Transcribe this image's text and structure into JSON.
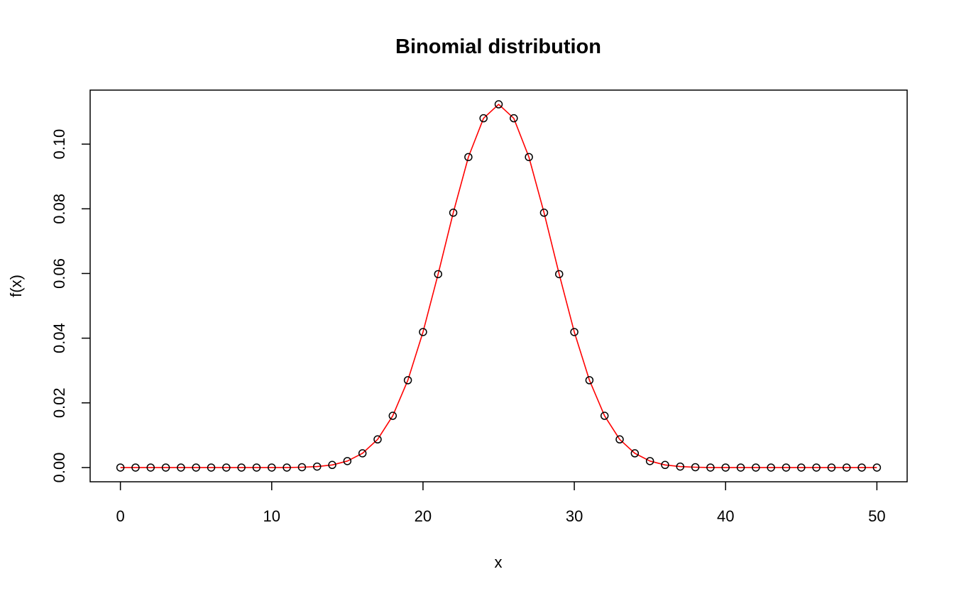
{
  "chart_data": {
    "type": "scatter",
    "title": "Binomial distribution",
    "xlabel": "x",
    "ylabel": "f(x)",
    "xlim": [
      -2,
      52
    ],
    "ylim": [
      -0.0044,
      0.1167
    ],
    "xticks": [
      0,
      10,
      20,
      30,
      40,
      50
    ],
    "yticks": [
      0.0,
      0.02,
      0.04,
      0.06,
      0.08,
      0.1
    ],
    "xtick_labels": [
      "0",
      "10",
      "20",
      "30",
      "40",
      "50"
    ],
    "ytick_labels": [
      "0.00",
      "0.02",
      "0.04",
      "0.06",
      "0.08",
      "0.10"
    ],
    "grid": false,
    "legend": "none",
    "series": [
      {
        "style": "points",
        "color": "#000000",
        "marker": "open-circle",
        "x": [
          0,
          1,
          2,
          3,
          4,
          5,
          6,
          7,
          8,
          9,
          10,
          11,
          12,
          13,
          14,
          15,
          16,
          17,
          18,
          19,
          20,
          21,
          22,
          23,
          24,
          25,
          26,
          27,
          28,
          29,
          30,
          31,
          32,
          33,
          34,
          35,
          36,
          37,
          38,
          39,
          40,
          41,
          42,
          43,
          44,
          45,
          46,
          47,
          48,
          49,
          50
        ],
        "y": [
          0.0,
          0.0,
          0.0,
          0.0,
          0.0,
          0.0,
          0.0,
          0.0,
          0.0,
          0.0,
          0.0,
          0.0,
          0.0001,
          0.0003,
          0.0008,
          0.002,
          0.0044,
          0.0087,
          0.016,
          0.027,
          0.0419,
          0.0598,
          0.0788,
          0.096,
          0.108,
          0.1123,
          0.108,
          0.096,
          0.0788,
          0.0598,
          0.0419,
          0.027,
          0.016,
          0.0087,
          0.0044,
          0.002,
          0.0008,
          0.0003,
          0.0001,
          0.0,
          0.0,
          0.0,
          0.0,
          0.0,
          0.0,
          0.0,
          0.0,
          0.0,
          0.0,
          0.0,
          0.0
        ]
      },
      {
        "style": "line",
        "color": "#ff0000",
        "x": [
          0,
          1,
          2,
          3,
          4,
          5,
          6,
          7,
          8,
          9,
          10,
          11,
          12,
          13,
          14,
          15,
          16,
          17,
          18,
          19,
          20,
          21,
          22,
          23,
          24,
          25,
          26,
          27,
          28,
          29,
          30,
          31,
          32,
          33,
          34,
          35,
          36,
          37,
          38,
          39,
          40,
          41,
          42,
          43,
          44,
          45,
          46,
          47,
          48,
          49,
          50
        ],
        "y": [
          0.0,
          0.0,
          0.0,
          0.0,
          0.0,
          0.0,
          0.0,
          0.0,
          0.0,
          0.0,
          0.0,
          0.0,
          0.0001,
          0.0003,
          0.0008,
          0.002,
          0.0044,
          0.0087,
          0.016,
          0.027,
          0.0419,
          0.0598,
          0.0788,
          0.096,
          0.108,
          0.1123,
          0.108,
          0.096,
          0.0788,
          0.0598,
          0.0419,
          0.027,
          0.016,
          0.0087,
          0.0044,
          0.002,
          0.0008,
          0.0003,
          0.0001,
          0.0,
          0.0,
          0.0,
          0.0,
          0.0,
          0.0,
          0.0,
          0.0,
          0.0,
          0.0,
          0.0,
          0.0
        ]
      }
    ]
  }
}
